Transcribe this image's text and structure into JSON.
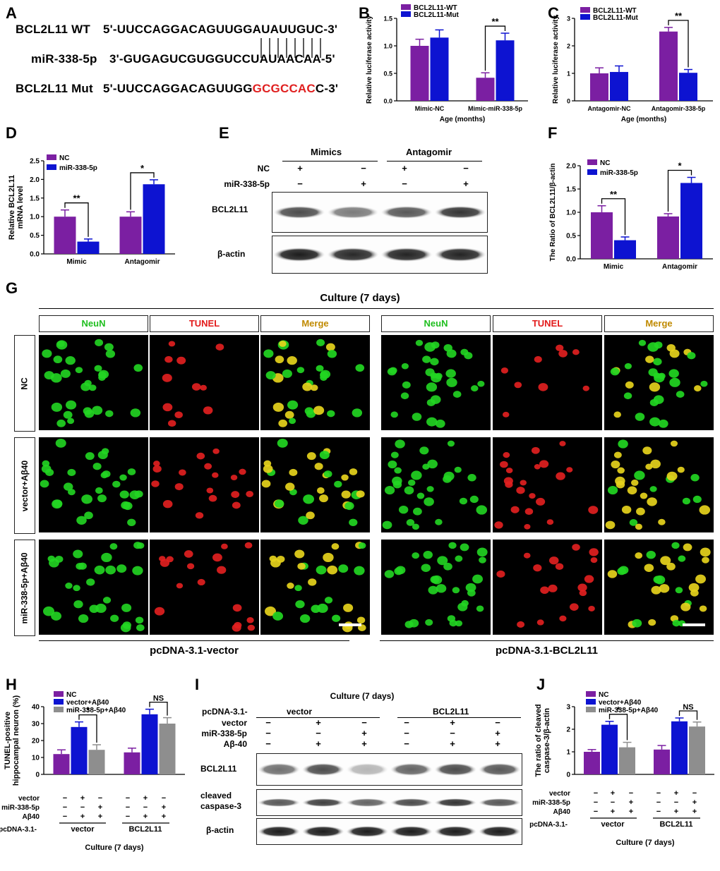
{
  "panels": {
    "A": "A",
    "B": "B",
    "C": "C",
    "D": "D",
    "E": "E",
    "F": "F",
    "G": "G",
    "H": "H",
    "I": "I",
    "J": "J"
  },
  "colors": {
    "purple": "#7b1fa2",
    "blue": "#0d13d1",
    "gray": "#8e8e8e",
    "red": "#e02020",
    "neun": "#1fbf1f",
    "tunel": "#e31b1b",
    "merge": "#c08a00"
  },
  "panelA": {
    "wt_label": "BCL2L11 WT",
    "wt_seq": "5'-UUCCAGGACAGUUGGAUAUUGUC-3'",
    "mir_label": "miR-338-5p",
    "mir_seq": "3'-GUGAGUCGUGGUCCUAUAACAA-5'",
    "mut_label": "BCL2L11 Mut",
    "mut_prefix": "5'-UUCCAGGACAGUUGG",
    "mut_red": "GCGCCAC",
    "mut_suffix": "C-3'"
  },
  "chart_data": [
    {
      "panel": "B",
      "type": "bar",
      "ylabel": "Relative luciferase activity",
      "xlabel": "Age (months)",
      "ylim": [
        0,
        1.5
      ],
      "yticks": [
        "0.0",
        "0.5",
        "1.0",
        "1.5"
      ],
      "categories": [
        "Mimic-NC",
        "Mimic-miR-338-5p"
      ],
      "series": [
        {
          "name": "BCL2L11-WT",
          "color": "#7b1fa2",
          "values": [
            1.0,
            0.42
          ],
          "errors": [
            0.12,
            0.09
          ]
        },
        {
          "name": "BCL2L11-Mut",
          "color": "#0d13d1",
          "values": [
            1.15,
            1.1
          ],
          "errors": [
            0.14,
            0.13
          ]
        }
      ],
      "annotations": [
        {
          "text": "**",
          "category": 1
        }
      ]
    },
    {
      "panel": "C",
      "type": "bar",
      "ylabel": "Relative luciferase activity",
      "xlabel": "Age (months)",
      "ylim": [
        0,
        3
      ],
      "yticks": [
        "0",
        "1",
        "2",
        "3"
      ],
      "categories": [
        "Antagomir-NC",
        "Antagomir-338-5p"
      ],
      "series": [
        {
          "name": "BCL2L11-WT",
          "color": "#7b1fa2",
          "values": [
            1.0,
            2.52
          ],
          "errors": [
            0.2,
            0.15
          ]
        },
        {
          "name": "BCL2L11-Mut",
          "color": "#0d13d1",
          "values": [
            1.05,
            1.02
          ],
          "errors": [
            0.22,
            0.12
          ]
        }
      ],
      "annotations": [
        {
          "text": "**",
          "category": 1
        }
      ]
    },
    {
      "panel": "D",
      "type": "bar",
      "ylabel": "Relative BCL2L11 mRNA level",
      "xlabel": "",
      "ylim": [
        0,
        2.5
      ],
      "yticks": [
        "0.0",
        "0.5",
        "1.0",
        "1.5",
        "2.0",
        "2.5"
      ],
      "categories": [
        "Mimic",
        "Antagomir"
      ],
      "series": [
        {
          "name": "NC",
          "color": "#7b1fa2",
          "values": [
            1.0,
            1.0
          ],
          "errors": [
            0.18,
            0.13
          ]
        },
        {
          "name": "miR-338-5p",
          "color": "#0d13d1",
          "values": [
            0.33,
            1.87
          ],
          "errors": [
            0.07,
            0.12
          ]
        }
      ],
      "annotations": [
        {
          "text": "**",
          "category": 0
        },
        {
          "text": "*",
          "category": 1
        }
      ]
    },
    {
      "panel": "F",
      "type": "bar",
      "ylabel": "The Ratio of BCL2L11/β-actin",
      "xlabel": "",
      "ylim": [
        0,
        2.0
      ],
      "yticks": [
        "0.0",
        "0.5",
        "1.0",
        "1.5",
        "2.0"
      ],
      "categories": [
        "Mimic",
        "Antagomir"
      ],
      "series": [
        {
          "name": "NC",
          "color": "#7b1fa2",
          "values": [
            1.0,
            0.91
          ],
          "errors": [
            0.14,
            0.06
          ]
        },
        {
          "name": "miR-338-5p",
          "color": "#0d13d1",
          "values": [
            0.4,
            1.63
          ],
          "errors": [
            0.07,
            0.12
          ]
        }
      ],
      "annotations": [
        {
          "text": "**",
          "category": 0
        },
        {
          "text": "*",
          "category": 1
        }
      ]
    },
    {
      "panel": "H",
      "type": "bar",
      "ylabel": "TUNEL-positive hippocampal neuron (%)",
      "xlabel": "Culture (7 days)",
      "ylim": [
        0,
        40
      ],
      "yticks": [
        "0",
        "10",
        "20",
        "30",
        "40"
      ],
      "categories": [
        "vector",
        "BCL2L11"
      ],
      "series": [
        {
          "name": "NC",
          "color": "#7b1fa2",
          "values": [
            12,
            13
          ],
          "errors": [
            2.5,
            2.5
          ]
        },
        {
          "name": "vector+Aβ40",
          "color": "#0d13d1",
          "values": [
            28,
            35.5
          ],
          "errors": [
            3,
            3
          ]
        },
        {
          "name": "miR-338-5p+Aβ40",
          "color": "#8e8e8e",
          "values": [
            14.5,
            30
          ],
          "errors": [
            3,
            3.5
          ]
        }
      ],
      "annotations": [
        {
          "text": "*",
          "category": 0
        },
        {
          "text": "NS",
          "category": 1
        }
      ]
    },
    {
      "panel": "J",
      "type": "bar",
      "ylabel": "The ratio of cleaved caspase-3/β-actin",
      "xlabel": "Culture (7 days)",
      "ylim": [
        0,
        3
      ],
      "yticks": [
        "0",
        "1",
        "2",
        "3"
      ],
      "categories": [
        "vector",
        "BCL2L11"
      ],
      "series": [
        {
          "name": "NC",
          "color": "#7b1fa2",
          "values": [
            1.0,
            1.1
          ],
          "errors": [
            0.1,
            0.18
          ]
        },
        {
          "name": "vector+Aβ40",
          "color": "#0d13d1",
          "values": [
            2.2,
            2.35
          ],
          "errors": [
            0.15,
            0.15
          ]
        },
        {
          "name": "miR-338-5p+Aβ40",
          "color": "#8e8e8e",
          "values": [
            1.2,
            2.12
          ],
          "errors": [
            0.22,
            0.2
          ]
        }
      ],
      "annotations": [
        {
          "text": "*",
          "category": 0
        },
        {
          "text": "NS",
          "category": 1
        }
      ]
    }
  ],
  "treatmentTable": {
    "row_labels": [
      "vector",
      "miR-338-5p",
      "Aβ40"
    ],
    "prefix": "pcDNA-3.1-",
    "signs": [
      [
        "−",
        "+",
        "−",
        "−",
        "+",
        "−"
      ],
      [
        "−",
        "−",
        "+",
        "−",
        "−",
        "+"
      ],
      [
        "−",
        "+",
        "+",
        "−",
        "+",
        "+"
      ]
    ]
  },
  "panelE": {
    "groups": [
      "Mimics",
      "Antagomir"
    ],
    "row_labels": [
      "NC",
      "miR-338-5p"
    ],
    "signs": [
      [
        "+",
        "−",
        "+",
        "−"
      ],
      [
        "−",
        "+",
        "−",
        "+"
      ]
    ],
    "band1": "BCL2L11",
    "band2": "β-actin"
  },
  "panelG": {
    "title": "Culture (7 days)",
    "headers": [
      "NeuN",
      "TUNEL",
      "Merge"
    ],
    "rows": [
      "NC",
      "vector+Aβ40",
      "miR-338-5p+Aβ40"
    ],
    "left_group": "pcDNA-3.1-vector",
    "right_group": "pcDNA-3.1-BCL2L11"
  },
  "panelI": {
    "title": "Culture (7 days)",
    "prefix": "pcDNA-3.1-",
    "groups": [
      "vector",
      "BCL2L11"
    ],
    "row_labels": [
      "vector",
      "miR-338-5p",
      "Aβ-40"
    ],
    "bands": [
      "BCL2L11",
      "cleaved caspase-3",
      "β-actin"
    ]
  }
}
